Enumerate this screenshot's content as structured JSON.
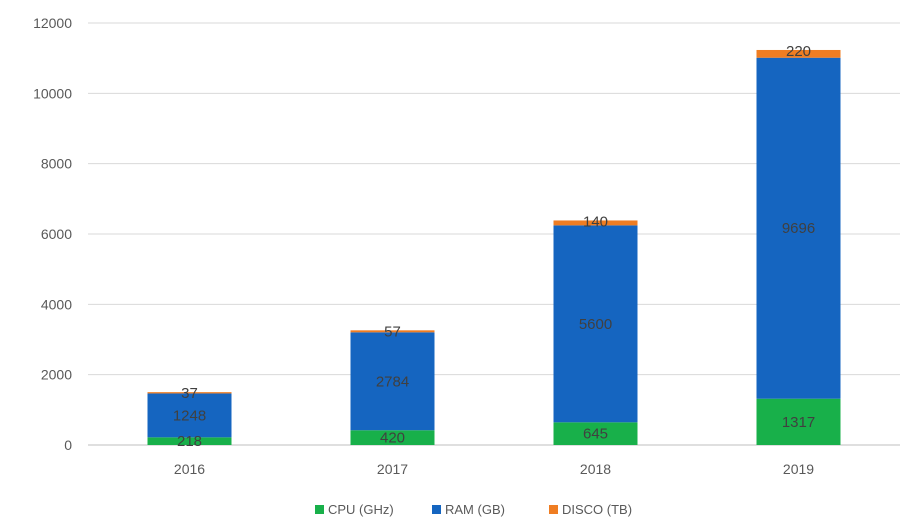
{
  "chart_data": {
    "type": "bar",
    "stacked": true,
    "categories": [
      "2016",
      "2017",
      "2018",
      "2019"
    ],
    "series": [
      {
        "name": "CPU (GHz)",
        "color": "#18b04a",
        "values": [
          218,
          420,
          645,
          1317
        ]
      },
      {
        "name": "RAM (GB)",
        "color": "#1565c0",
        "values": [
          1248,
          2784,
          5600,
          9696
        ]
      },
      {
        "name": "DISCO (TB)",
        "color": "#ef7d22",
        "values": [
          37,
          57,
          140,
          220
        ]
      }
    ],
    "data_labels": [
      [
        "218",
        "420",
        "645",
        "1317"
      ],
      [
        "1248",
        "2784",
        "5600",
        "9696"
      ],
      [
        "37",
        "57",
        "140",
        "220"
      ]
    ],
    "y_ticks": [
      "0",
      "2000",
      "4000",
      "6000",
      "8000",
      "10000",
      "12000"
    ],
    "ylim": [
      0,
      12000
    ],
    "grid": true,
    "legend_position": "bottom",
    "title": "",
    "xlabel": "",
    "ylabel": ""
  }
}
